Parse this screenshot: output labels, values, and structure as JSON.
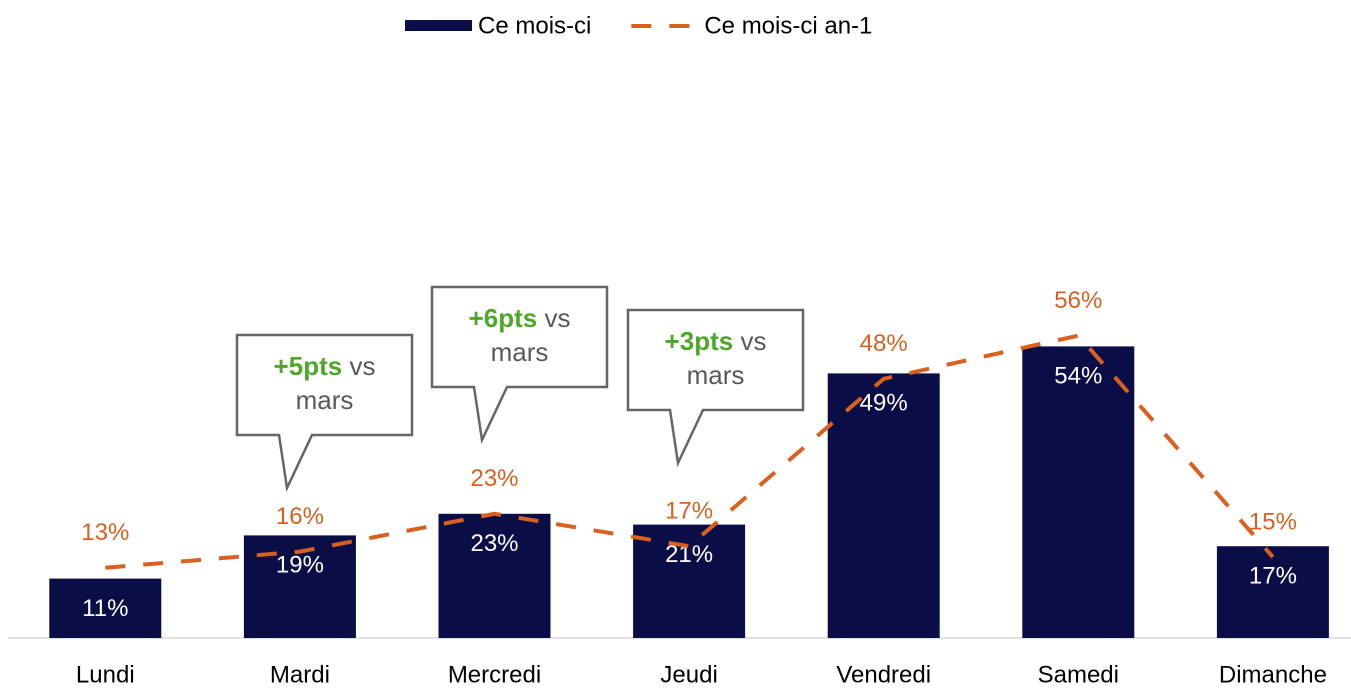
{
  "chart_data": {
    "type": "bar",
    "categories": [
      "Lundi",
      "Mardi",
      "Mercredi",
      "Jeudi",
      "Vendredi",
      "Samedi",
      "Dimanche"
    ],
    "series": [
      {
        "name": "Ce mois-ci",
        "type": "bar",
        "color": "#0b0d47",
        "values": [
          11,
          19,
          23,
          21,
          49,
          54,
          17
        ],
        "value_labels": [
          "11%",
          "19%",
          "23%",
          "21%",
          "49%",
          "54%",
          "17%"
        ]
      },
      {
        "name": "Ce mois-ci an-1",
        "type": "line",
        "dashed": true,
        "color": "#d9601f",
        "values": [
          13,
          16,
          23,
          17,
          48,
          56,
          15
        ],
        "value_labels": [
          "13%",
          "16%",
          "23%",
          "17%",
          "48%",
          "56%",
          "15%"
        ]
      }
    ],
    "ylim": [
      0,
      100
    ],
    "annotations": [
      {
        "highlight": "+5pts",
        "text": "vs mars"
      },
      {
        "highlight": "+6pts",
        "text": "vs mars"
      },
      {
        "highlight": "+3pts",
        "text": "vs mars"
      }
    ],
    "legend": "top"
  }
}
